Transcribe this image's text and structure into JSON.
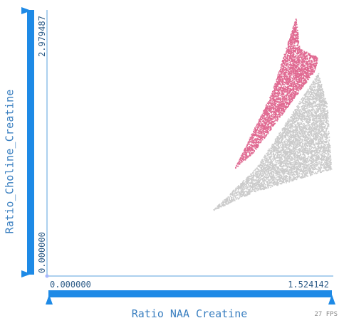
{
  "app": {
    "fps_label": "27 FPS"
  },
  "colors": {
    "accent": "#1e8ae6",
    "highlight": "#e06a92",
    "muted": "#cbcbcb"
  },
  "chart_data": {
    "type": "scatter",
    "xlabel": "Ratio NAA Creatine",
    "ylabel": "Ratio_Choline_Creatine",
    "xlim": [
      0.0,
      1.524142
    ],
    "ylim": [
      0.0,
      2.979487
    ],
    "x_min_label": "0.000000",
    "x_max_label": "1.524142",
    "y_min_label": "0.000000",
    "y_max_label": "2.979487",
    "grid": false,
    "series": [
      {
        "color": "#cbcbcb",
        "region": [
          [
            0.88,
            0.73
          ],
          [
            1.12,
            1.22
          ],
          [
            1.45,
            2.28
          ],
          [
            1.5,
            1.9
          ],
          [
            1.52,
            1.2
          ],
          [
            1.1,
            0.94
          ]
        ],
        "count": 5200
      },
      {
        "color": "#e06a92",
        "region": [
          [
            1.0,
            1.2
          ],
          [
            1.2,
            2.05
          ],
          [
            1.33,
            2.9
          ],
          [
            1.35,
            2.55
          ],
          [
            1.45,
            2.45
          ],
          [
            1.43,
            2.3
          ],
          [
            1.1,
            1.38
          ]
        ],
        "count": 3200
      }
    ]
  }
}
